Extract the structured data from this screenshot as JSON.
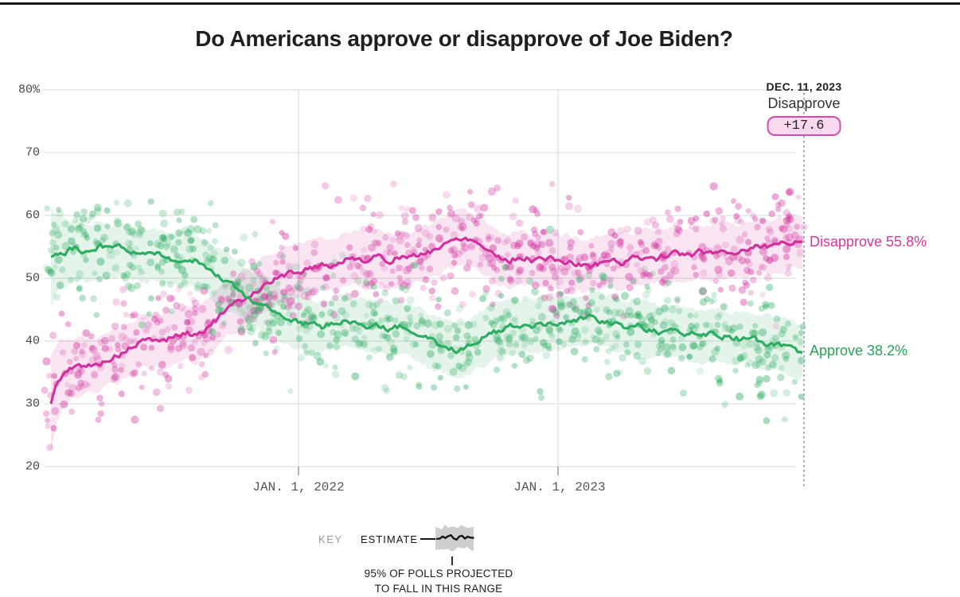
{
  "title": "Do Americans approve or disapprove of Joe Biden?",
  "annotation": {
    "date": "DEC. 11, 2023",
    "series": "Disapprove",
    "margin": "+17.6"
  },
  "end_labels": {
    "disapprove": "Disapprove 55.8%",
    "approve": "Approve 38.2%"
  },
  "key": {
    "label": "KEY",
    "estimate": "ESTIMATE",
    "caption_line1": "95% OF POLLS PROJECTED",
    "caption_line2": "TO FALL IN THIS RANGE"
  },
  "colors": {
    "disapprove_line": "#d1309e",
    "disapprove_label": "#d5379f",
    "disapprove_band": "rgba(209,48,158,0.13)",
    "approve_line": "#2dad61",
    "approve_label": "#2aa158",
    "approve_band": "rgba(52,173,102,0.13)",
    "gridline": "#d8d8d8",
    "tick": "#9a9a9a",
    "marker_line": "#a8a8a8",
    "badge_border": "#cf4fa8",
    "badge_bg": "#f9d9ee"
  },
  "chart_data": {
    "type": "scatter",
    "title": "Do Americans approve or disapprove of Joe Biden?",
    "ylim": [
      20,
      80
    ],
    "y_ticks": [
      {
        "label": "80%",
        "value": 80
      },
      {
        "label": "70",
        "value": 70
      },
      {
        "label": "60",
        "value": 60
      },
      {
        "label": "50",
        "value": 50
      },
      {
        "label": "40",
        "value": 40
      },
      {
        "label": "30",
        "value": 30
      },
      {
        "label": "20",
        "value": 20
      }
    ],
    "x_ticks": [
      {
        "label": "JAN. 1, 2022",
        "t": 0.3294
      },
      {
        "label": "JAN. 1, 2023",
        "t": 0.6748
      }
    ],
    "marker": {
      "date": "DEC. 11, 2023",
      "t": 1.0,
      "series": "Disapprove",
      "margin": 17.6
    },
    "series": [
      {
        "name": "Disapprove",
        "end_value": 55.8,
        "points": [
          [
            0,
            30.0
          ],
          [
            0.006,
            32.8
          ],
          [
            0.015,
            34.6
          ],
          [
            0.028,
            35.6
          ],
          [
            0.042,
            36.2
          ],
          [
            0.058,
            36.0
          ],
          [
            0.072,
            36.9
          ],
          [
            0.088,
            37.6
          ],
          [
            0.103,
            38.6
          ],
          [
            0.118,
            39.7
          ],
          [
            0.133,
            40.2
          ],
          [
            0.148,
            40.0
          ],
          [
            0.163,
            40.7
          ],
          [
            0.178,
            41.2
          ],
          [
            0.193,
            41.0
          ],
          [
            0.206,
            42.0
          ],
          [
            0.22,
            43.4
          ],
          [
            0.234,
            44.9
          ],
          [
            0.248,
            46.1
          ],
          [
            0.262,
            47.1
          ],
          [
            0.276,
            48.3
          ],
          [
            0.29,
            49.4
          ],
          [
            0.305,
            50.2
          ],
          [
            0.32,
            50.9
          ],
          [
            0.33,
            51.1
          ],
          [
            0.345,
            51.6
          ],
          [
            0.36,
            52.2
          ],
          [
            0.375,
            52.0
          ],
          [
            0.39,
            52.8
          ],
          [
            0.405,
            53.2
          ],
          [
            0.42,
            52.9
          ],
          [
            0.435,
            53.4
          ],
          [
            0.45,
            52.8
          ],
          [
            0.465,
            53.5
          ],
          [
            0.48,
            53.2
          ],
          [
            0.495,
            53.9
          ],
          [
            0.51,
            54.6
          ],
          [
            0.525,
            55.4
          ],
          [
            0.54,
            56.3
          ],
          [
            0.552,
            56.6
          ],
          [
            0.565,
            55.9
          ],
          [
            0.58,
            54.7
          ],
          [
            0.595,
            53.5
          ],
          [
            0.61,
            52.8
          ],
          [
            0.625,
            53.4
          ],
          [
            0.64,
            52.9
          ],
          [
            0.655,
            53.2
          ],
          [
            0.67,
            53.0
          ],
          [
            0.685,
            52.6
          ],
          [
            0.7,
            52.2
          ],
          [
            0.715,
            51.9
          ],
          [
            0.73,
            52.4
          ],
          [
            0.745,
            52.9
          ],
          [
            0.76,
            52.5
          ],
          [
            0.775,
            53.1
          ],
          [
            0.79,
            53.4
          ],
          [
            0.805,
            53.2
          ],
          [
            0.82,
            53.7
          ],
          [
            0.835,
            54.0
          ],
          [
            0.85,
            53.6
          ],
          [
            0.865,
            54.2
          ],
          [
            0.88,
            54.0
          ],
          [
            0.895,
            54.4
          ],
          [
            0.91,
            54.1
          ],
          [
            0.925,
            54.6
          ],
          [
            0.94,
            55.2
          ],
          [
            0.955,
            55.0
          ],
          [
            0.97,
            55.5
          ],
          [
            0.985,
            55.9
          ],
          [
            1,
            55.8
          ]
        ]
      },
      {
        "name": "Approve",
        "end_value": 38.2,
        "points": [
          [
            0,
            53.4
          ],
          [
            0.008,
            54.0
          ],
          [
            0.02,
            54.3
          ],
          [
            0.035,
            54.8
          ],
          [
            0.05,
            54.1
          ],
          [
            0.065,
            55.0
          ],
          [
            0.08,
            54.4
          ],
          [
            0.095,
            54.8
          ],
          [
            0.11,
            54.1
          ],
          [
            0.125,
            53.6
          ],
          [
            0.14,
            53.9
          ],
          [
            0.155,
            53.3
          ],
          [
            0.17,
            52.9
          ],
          [
            0.185,
            53.2
          ],
          [
            0.2,
            52.5
          ],
          [
            0.21,
            51.7
          ],
          [
            0.222,
            50.3
          ],
          [
            0.235,
            49.5
          ],
          [
            0.248,
            48.3
          ],
          [
            0.262,
            47.0
          ],
          [
            0.275,
            46.1
          ],
          [
            0.29,
            45.2
          ],
          [
            0.305,
            44.4
          ],
          [
            0.32,
            43.5
          ],
          [
            0.33,
            43.2
          ],
          [
            0.345,
            42.6
          ],
          [
            0.36,
            42.2
          ],
          [
            0.375,
            42.9
          ],
          [
            0.39,
            43.3
          ],
          [
            0.405,
            42.6
          ],
          [
            0.42,
            42.2
          ],
          [
            0.435,
            42.5
          ],
          [
            0.45,
            41.9
          ],
          [
            0.465,
            42.3
          ],
          [
            0.48,
            41.6
          ],
          [
            0.495,
            40.7
          ],
          [
            0.51,
            39.7
          ],
          [
            0.525,
            39.0
          ],
          [
            0.54,
            38.6
          ],
          [
            0.555,
            39.1
          ],
          [
            0.57,
            40.0
          ],
          [
            0.585,
            41.2
          ],
          [
            0.6,
            41.9
          ],
          [
            0.615,
            42.4
          ],
          [
            0.63,
            42.1
          ],
          [
            0.645,
            42.5
          ],
          [
            0.66,
            42.6
          ],
          [
            0.675,
            42.8
          ],
          [
            0.69,
            43.0
          ],
          [
            0.705,
            43.4
          ],
          [
            0.72,
            43.8
          ],
          [
            0.735,
            43.1
          ],
          [
            0.75,
            42.5
          ],
          [
            0.765,
            42.3
          ],
          [
            0.78,
            42.6
          ],
          [
            0.795,
            41.9
          ],
          [
            0.81,
            41.4
          ],
          [
            0.825,
            41.6
          ],
          [
            0.84,
            41.1
          ],
          [
            0.855,
            41.3
          ],
          [
            0.87,
            40.8
          ],
          [
            0.885,
            41.1
          ],
          [
            0.9,
            40.6
          ],
          [
            0.915,
            40.3
          ],
          [
            0.93,
            40.5
          ],
          [
            0.945,
            39.9
          ],
          [
            0.96,
            39.5
          ],
          [
            0.975,
            39.0
          ],
          [
            0.99,
            38.6
          ],
          [
            1,
            38.2
          ]
        ]
      }
    ],
    "scatter": {
      "per_series": 720,
      "sd": 4.1,
      "seed": 7,
      "radius": [
        3.5,
        5.2
      ],
      "opacity": [
        0.14,
        0.44
      ]
    },
    "band": {
      "halfwidth": 4.3,
      "start_extra": 3.4,
      "meaning": "95% of polls projected to fall in this range"
    }
  }
}
